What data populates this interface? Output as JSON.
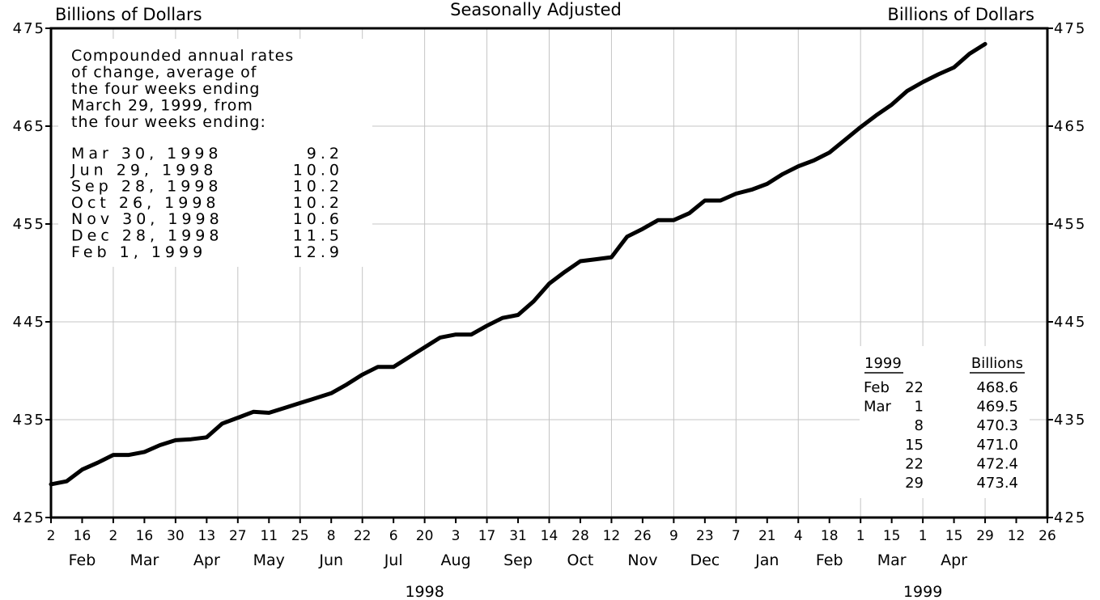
{
  "chart_data": {
    "type": "line",
    "title": "Seasonally Adjusted",
    "ylabel_left": "Billions of Dollars",
    "ylabel_right": "Billions of Dollars",
    "ylim": [
      425,
      475
    ],
    "yticks": [
      425,
      435,
      445,
      455,
      465,
      475
    ],
    "ytick_labels": [
      "425",
      "435",
      "445",
      "455",
      "465",
      "475"
    ],
    "grid": true,
    "line_color": "#000000",
    "x_week_ticks": [
      "2",
      "16",
      "2",
      "16",
      "30",
      "13",
      "27",
      "11",
      "25",
      "8",
      "22",
      "6",
      "20",
      "3",
      "17",
      "31",
      "14",
      "28",
      "12",
      "26",
      "9",
      "23",
      "7",
      "21",
      "4",
      "18",
      "1",
      "15",
      "1",
      "15",
      "29",
      "12",
      "26"
    ],
    "x_month_labels": [
      "Feb",
      "Mar",
      "Apr",
      "May",
      "Jun",
      "Jul",
      "Aug",
      "Sep",
      "Oct",
      "Nov",
      "Dec",
      "Jan",
      "Feb",
      "Mar",
      "Apr"
    ],
    "x_year_labels": [
      "1998",
      "1999"
    ],
    "series": [
      {
        "values": [
          428.4,
          428.7,
          429.9,
          430.6,
          431.4,
          431.4,
          431.7,
          432.4,
          432.9,
          433.0,
          433.2,
          434.6,
          435.2,
          435.8,
          435.7,
          436.2,
          436.7,
          437.2,
          437.7,
          438.6,
          439.6,
          440.4,
          440.4,
          441.4,
          442.4,
          443.4,
          443.7,
          443.7,
          444.6,
          445.4,
          445.7,
          447.1,
          448.9,
          450.1,
          451.2,
          451.4,
          451.6,
          453.7,
          454.5,
          455.4,
          455.4,
          456.1,
          457.4,
          457.4,
          458.1,
          458.5,
          459.1,
          460.1,
          460.9,
          461.5,
          462.3,
          463.6,
          464.9,
          466.1,
          467.2,
          468.6,
          469.5,
          470.3,
          471.0,
          472.4,
          473.4
        ]
      }
    ],
    "annotation": {
      "lines": [
        "Compounded annual rates",
        "of change, average of",
        "the four weeks ending",
        "March 29, 1999, from",
        "the four weeks ending:"
      ],
      "rows": [
        {
          "date": "Mar 30, 1998",
          "value": "9.2"
        },
        {
          "date": "Jun 29, 1998",
          "value": "10.0"
        },
        {
          "date": "Sep 28, 1998",
          "value": "10.2"
        },
        {
          "date": "Oct 26, 1998",
          "value": "10.2"
        },
        {
          "date": "Nov 30, 1998",
          "value": "10.6"
        },
        {
          "date": "Dec 28, 1998",
          "value": "11.5"
        },
        {
          "date": "Feb  1, 1999",
          "value": "12.9"
        }
      ]
    },
    "recent_table": {
      "header_date": "1999",
      "header_value": "Billions",
      "rows": [
        {
          "month": "Feb",
          "day": "22",
          "value": "468.6"
        },
        {
          "month": "Mar",
          "day": "1",
          "value": "469.5"
        },
        {
          "month": "",
          "day": "8",
          "value": "470.3"
        },
        {
          "month": "",
          "day": "15",
          "value": "471.0"
        },
        {
          "month": "",
          "day": "22",
          "value": "472.4"
        },
        {
          "month": "",
          "day": "29",
          "value": "473.4"
        }
      ]
    }
  }
}
